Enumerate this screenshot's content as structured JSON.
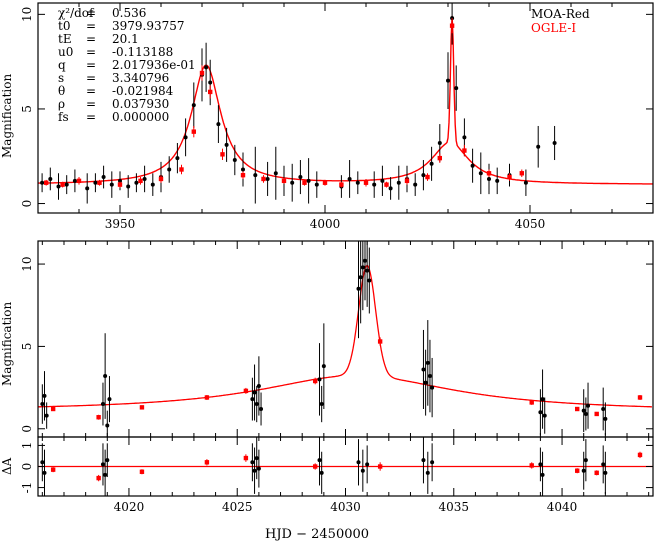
{
  "chart_data": [
    {
      "type": "scatter",
      "panel": "top",
      "ylabel": "Magnification",
      "xlim": [
        3930,
        4080
      ],
      "ylim": [
        -0.5,
        10.6
      ],
      "x_ticks": [
        3950,
        4000,
        4050
      ],
      "y_ticks": [
        0,
        5,
        10
      ],
      "grid": false,
      "legend_position": "top-right",
      "legend": [
        {
          "name": "MOA-Red",
          "color": "#000000"
        },
        {
          "name": "OGLE-I",
          "color": "#ff0000"
        }
      ],
      "params": [
        {
          "symbol": "χ²/dof",
          "value": "0.536"
        },
        {
          "symbol": "t0",
          "value": "3979.93757"
        },
        {
          "symbol": "tE",
          "value": "20.1"
        },
        {
          "symbol": "u0",
          "value": "-0.113188"
        },
        {
          "symbol": "q",
          "value": "2.017936e-01"
        },
        {
          "symbol": "s",
          "value": "3.340796"
        },
        {
          "symbol": "θ",
          "value": "-0.021984"
        },
        {
          "symbol": "ρ",
          "value": "0.037930"
        },
        {
          "symbol": "fs",
          "value": "0.000000"
        }
      ],
      "model_curve": {
        "baseline": 1.0,
        "peak1": {
          "x": 3971.0,
          "y": 7.3
        },
        "peak2": {
          "x": 4031.0,
          "y": 9.9
        }
      },
      "series": [
        {
          "name": "MOA-Red",
          "x": [
            3931,
            3933,
            3935,
            3937,
            3939,
            3942,
            3944,
            3946,
            3948,
            3950,
            3952,
            3954,
            3956,
            3958,
            3960,
            3962,
            3964,
            3966,
            3968,
            3970,
            3971,
            3972,
            3974,
            3976,
            3978,
            3980,
            3983,
            3986,
            3988,
            3990,
            3992,
            3994,
            3996,
            3998,
            4004,
            4006,
            4008,
            4012,
            4014,
            4016,
            4018,
            4020,
            4022,
            4024,
            4026,
            4028,
            4030,
            4031,
            4032,
            4034,
            4036,
            4038,
            4040,
            4042,
            4045,
            4049,
            4052,
            4056
          ],
          "y": [
            1.1,
            1.3,
            0.9,
            1.0,
            1.2,
            0.8,
            1.1,
            1.4,
            1.0,
            1.2,
            0.9,
            1.1,
            1.3,
            1.0,
            1.4,
            1.8,
            2.4,
            3.5,
            5.2,
            6.8,
            7.2,
            6.4,
            4.2,
            3.1,
            2.3,
            1.8,
            1.5,
            1.3,
            1.6,
            1.2,
            1.1,
            1.4,
            1.2,
            1.0,
            0.9,
            1.3,
            1.1,
            1.0,
            1.2,
            0.8,
            1.1,
            1.3,
            1.0,
            1.5,
            2.1,
            3.2,
            6.5,
            9.8,
            6.1,
            3.5,
            2.0,
            1.6,
            1.3,
            1.2,
            1.5,
            1.1,
            3.0,
            3.2
          ],
          "err": [
            0.5,
            0.6,
            0.7,
            0.5,
            0.6,
            0.8,
            0.5,
            0.6,
            0.7,
            0.5,
            0.6,
            0.5,
            0.7,
            0.6,
            0.8,
            0.7,
            0.8,
            1.0,
            1.2,
            1.4,
            1.3,
            1.2,
            1.0,
            0.9,
            0.8,
            0.9,
            1.5,
            0.9,
            1.4,
            0.8,
            1.0,
            0.9,
            1.2,
            0.7,
            0.6,
            1.0,
            0.6,
            0.7,
            0.8,
            0.6,
            0.9,
            0.7,
            0.6,
            0.8,
            0.9,
            1.0,
            1.5,
            1.4,
            1.2,
            1.0,
            0.9,
            1.1,
            0.8,
            0.7,
            0.6,
            0.7,
            1.1,
            0.9
          ]
        },
        {
          "name": "OGLE-I",
          "x": [
            3932,
            3936,
            3940,
            3945,
            3950,
            3955,
            3960,
            3965,
            3968,
            3970,
            3972,
            3975,
            3980,
            3985,
            3990,
            3995,
            4000,
            4004,
            4010,
            4015,
            4020,
            4025,
            4028,
            4031,
            4034,
            4040,
            4045,
            4048
          ],
          "y": [
            1.1,
            1.0,
            1.2,
            1.1,
            1.0,
            1.2,
            1.3,
            1.8,
            3.8,
            6.9,
            5.9,
            2.6,
            1.5,
            1.3,
            1.2,
            1.1,
            1.1,
            1.0,
            1.1,
            1.0,
            1.2,
            1.4,
            2.4,
            9.4,
            2.8,
            1.6,
            1.4,
            1.6
          ],
          "err": [
            0.15,
            0.15,
            0.2,
            0.15,
            0.15,
            0.2,
            0.2,
            0.25,
            0.3,
            0.4,
            0.35,
            0.3,
            0.2,
            0.2,
            0.15,
            0.15,
            0.15,
            0.15,
            0.2,
            0.15,
            0.2,
            0.2,
            0.25,
            0.4,
            0.3,
            0.2,
            0.2,
            0.2
          ]
        }
      ]
    },
    {
      "type": "scatter",
      "panel": "middle",
      "ylabel": "Magnification",
      "xlim": [
        4015.8,
        4044.2
      ],
      "ylim": [
        -0.5,
        11.4
      ],
      "x_ticks": [
        4020,
        4025,
        4030,
        4035,
        4040
      ],
      "y_ticks": [
        0,
        5,
        10
      ],
      "grid": false,
      "series": [
        {
          "name": "MOA-Red",
          "x": [
            4016.0,
            4016.1,
            4016.2,
            4018.8,
            4018.9,
            4019.0,
            4019.1,
            4025.7,
            4025.8,
            4025.9,
            4026.0,
            4026.1,
            4028.8,
            4028.9,
            4029.0,
            4030.6,
            4030.7,
            4030.8,
            4030.9,
            4031.0,
            4031.1,
            4033.6,
            4033.7,
            4033.8,
            4033.9,
            4034.0,
            4039.0,
            4039.1,
            4039.2,
            4041.0,
            4041.1,
            4041.2,
            4041.9,
            4042.0
          ],
          "y": [
            1.5,
            2.0,
            0.8,
            1.5,
            3.2,
            0.2,
            1.8,
            1.8,
            2.2,
            1.5,
            2.6,
            1.2,
            3.0,
            1.5,
            3.8,
            8.5,
            9.2,
            9.8,
            10.2,
            9.6,
            9.0,
            3.6,
            2.8,
            4.0,
            3.2,
            2.5,
            1.0,
            1.8,
            0.8,
            1.1,
            0.9,
            1.4,
            1.2,
            0.6
          ],
          "err": [
            1.2,
            1.5,
            0.8,
            1.3,
            2.6,
            0.9,
            1.4,
            1.3,
            1.7,
            1.1,
            1.8,
            1.0,
            2.2,
            1.1,
            2.6,
            3.0,
            2.8,
            2.6,
            2.4,
            2.2,
            2.0,
            2.4,
            2.0,
            2.6,
            2.2,
            1.8,
            1.4,
            1.8,
            1.1,
            1.3,
            1.0,
            1.4,
            1.3,
            1.0
          ]
        },
        {
          "name": "OGLE-I",
          "x": [
            4016.5,
            4018.6,
            4020.6,
            4023.6,
            4025.4,
            4028.6,
            4031.6,
            4038.6,
            4040.7,
            4041.6,
            4043.6
          ],
          "y": [
            1.2,
            0.7,
            1.3,
            1.9,
            2.3,
            2.9,
            5.3,
            1.6,
            1.2,
            0.9,
            1.9
          ],
          "err": [
            0.12,
            0.15,
            0.12,
            0.15,
            0.18,
            0.2,
            0.25,
            0.15,
            0.12,
            0.12,
            0.15
          ]
        }
      ]
    },
    {
      "type": "scatter",
      "panel": "residual",
      "ylabel": "ΔA",
      "xlabel": "HJD − 2450000",
      "xlim": [
        4015.8,
        4044.2
      ],
      "ylim": [
        -1.4,
        1.4
      ],
      "x_ticks": [
        4020,
        4025,
        4030,
        4035,
        4040
      ],
      "y_ticks": [
        -1,
        0,
        1
      ],
      "grid": false,
      "series": [
        {
          "name": "MOA-Red",
          "x": [
            4016.0,
            4016.1,
            4018.8,
            4018.9,
            4019.0,
            4025.7,
            4025.8,
            4025.9,
            4026.0,
            4028.8,
            4028.9,
            4030.6,
            4030.8,
            4031.0,
            4033.6,
            4033.8,
            4034.0,
            4039.0,
            4039.1,
            4041.0,
            4041.1,
            4041.9,
            4042.0
          ],
          "y": [
            0.2,
            -0.3,
            0.1,
            -0.4,
            0.3,
            0.2,
            -0.2,
            0.4,
            -0.1,
            0.3,
            -0.3,
            0.2,
            -0.2,
            0.1,
            0.3,
            -0.3,
            0.2,
            0.1,
            -0.4,
            -0.2,
            0.3,
            0.1,
            -0.3
          ],
          "err": [
            0.9,
            1.1,
            1.0,
            1.2,
            0.8,
            0.9,
            1.1,
            1.0,
            0.9,
            1.2,
            1.0,
            1.1,
            1.0,
            0.9,
            1.1,
            1.0,
            0.9,
            0.8,
            1.1,
            0.9,
            1.0,
            0.9,
            1.0
          ]
        },
        {
          "name": "OGLE-I",
          "x": [
            4016.5,
            4018.6,
            4020.6,
            4023.6,
            4025.4,
            4028.6,
            4031.6,
            4038.6,
            4040.7,
            4041.6,
            4043.6
          ],
          "y": [
            -0.15,
            -0.55,
            -0.25,
            0.2,
            0.4,
            0.0,
            0.0,
            0.05,
            -0.2,
            -0.3,
            0.55
          ],
          "err": [
            0.12,
            0.15,
            0.12,
            0.15,
            0.18,
            0.15,
            0.2,
            0.15,
            0.12,
            0.12,
            0.15
          ]
        }
      ]
    }
  ]
}
